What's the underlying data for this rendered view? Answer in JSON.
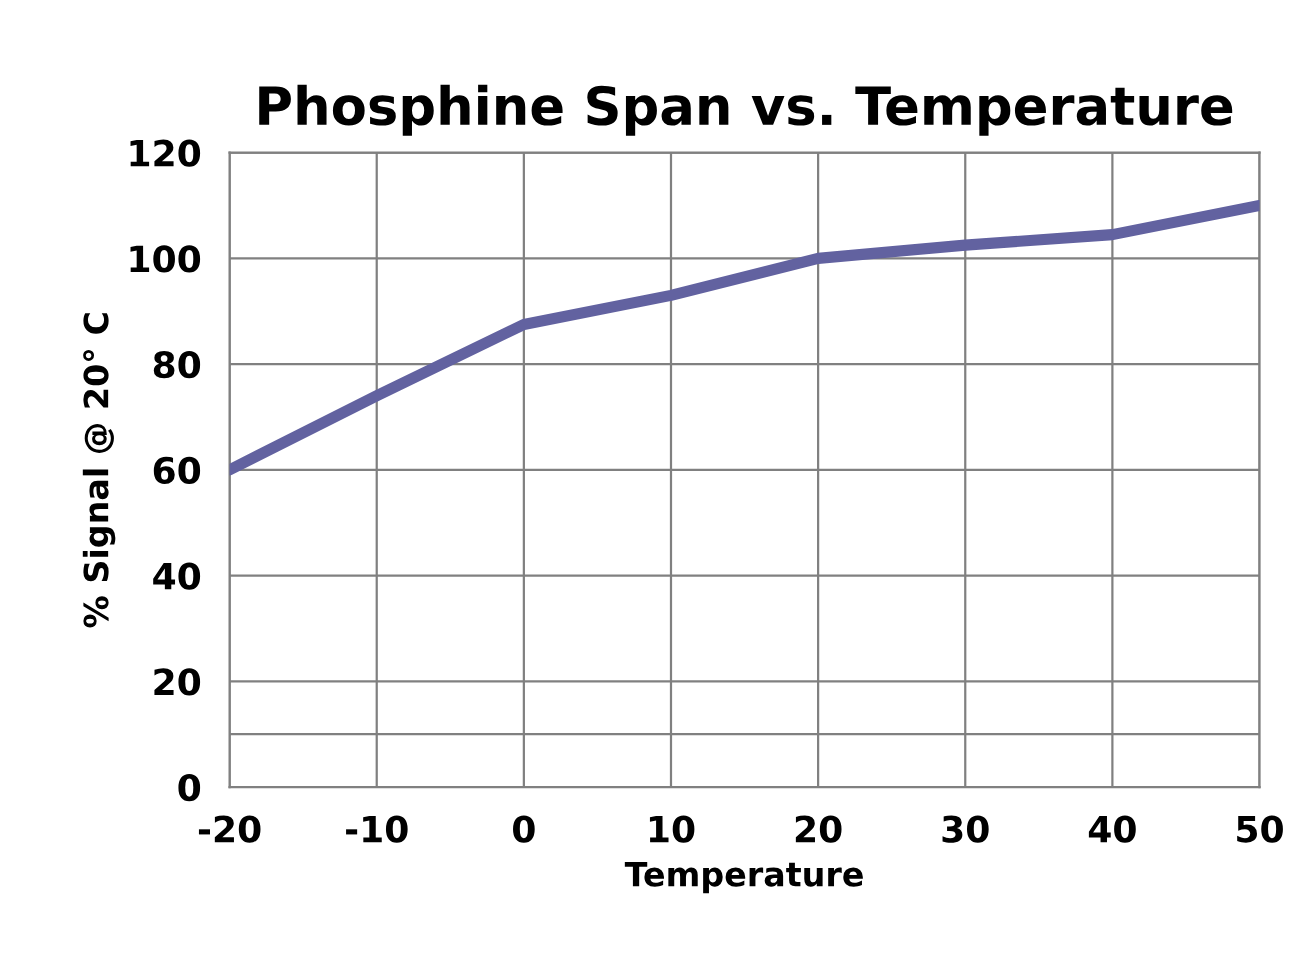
{
  "chart_data": {
    "type": "line",
    "title": "Phosphine Span vs. Temperature",
    "xlabel": "Temperature",
    "ylabel": "% Signal @ 20° C",
    "x": [
      -20,
      -10,
      0,
      10,
      20,
      30,
      40,
      50
    ],
    "series": [
      {
        "color": "#6262a0",
        "values": [
          60,
          74,
          87.5,
          93,
          100,
          102.5,
          104.5,
          110
        ]
      }
    ],
    "xlim": [
      -20,
      50
    ],
    "xticks": [
      -20,
      -10,
      0,
      10,
      20,
      30,
      40,
      50
    ],
    "ylim": [
      0,
      120
    ],
    "yticks": [
      0,
      {
        "value": 10,
        "label": null
      },
      20,
      40,
      60,
      80,
      100,
      120
    ],
    "grid": true,
    "legend": false,
    "marker": "none",
    "line_style": "solid"
  }
}
